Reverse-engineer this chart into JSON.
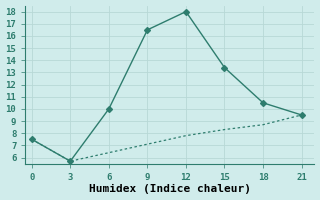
{
  "xlabel": "Humidex (Indice chaleur)",
  "x_upper": [
    0,
    3,
    6,
    9,
    12,
    15,
    18,
    21
  ],
  "y_upper": [
    7.5,
    5.7,
    10.0,
    16.5,
    18.0,
    13.4,
    10.5,
    9.5
  ],
  "x_lower": [
    0,
    3,
    6,
    9,
    12,
    15,
    18,
    21
  ],
  "y_lower": [
    7.5,
    5.7,
    6.4,
    7.1,
    7.8,
    8.3,
    8.7,
    9.5
  ],
  "line_color": "#2e7d6e",
  "bg_color": "#d0eceb",
  "grid_color_major": "#b8d8d6",
  "grid_color_minor": "#e0f0ef",
  "ylim": [
    5.5,
    18.5
  ],
  "xlim": [
    -0.5,
    22
  ],
  "yticks": [
    6,
    7,
    8,
    9,
    10,
    11,
    12,
    13,
    14,
    15,
    16,
    17,
    18
  ],
  "xticks": [
    0,
    3,
    6,
    9,
    12,
    15,
    18,
    21
  ],
  "marker": "D",
  "markersize": 3,
  "linewidth": 1.0,
  "lower_linewidth": 0.9,
  "font_family": "monospace",
  "xlabel_fontsize": 8,
  "tick_fontsize": 6.5
}
